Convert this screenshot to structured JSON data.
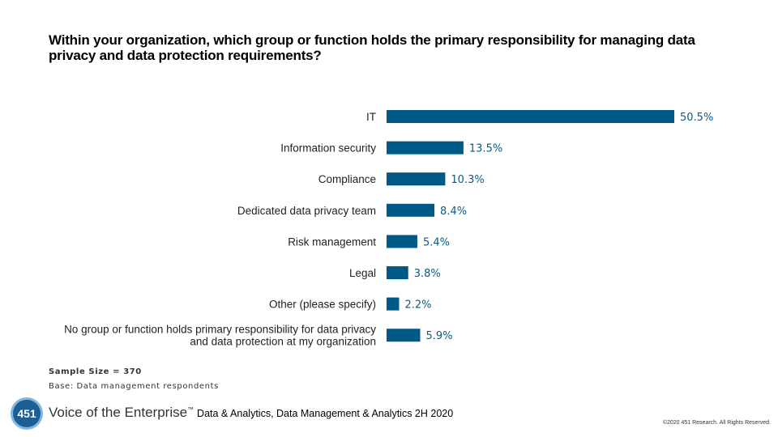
{
  "header": {
    "title": "Within your organization, which group or function holds the primary responsibility for managing data privacy and data protection requirements?"
  },
  "chart_data": {
    "type": "bar",
    "orientation": "horizontal",
    "categories": [
      [
        "IT"
      ],
      [
        "Information security"
      ],
      [
        "Compliance"
      ],
      [
        "Dedicated data privacy team"
      ],
      [
        "Risk management"
      ],
      [
        "Legal"
      ],
      [
        "Other (please specify)"
      ],
      [
        "No group or function holds primary responsibility for data privacy",
        "and data protection at my organization"
      ]
    ],
    "values": [
      50.5,
      13.5,
      10.3,
      8.4,
      5.4,
      3.8,
      2.2,
      5.9
    ],
    "value_labels": [
      "50.5%",
      "13.5%",
      "10.3%",
      "8.4%",
      "5.4%",
      "3.8%",
      "2.2%",
      "5.9%"
    ],
    "bar_color": "#005a87",
    "label_color": "#0b5a87",
    "xlim": [
      0,
      50.5
    ],
    "grid": false,
    "legend": "none"
  },
  "notes": {
    "sample_size": "Sample Size = 370",
    "base": "Base: Data management respondents"
  },
  "footer": {
    "logo_text": "451",
    "brand": "Voice of the Enterprise",
    "trademark": "™",
    "study": "Data & Analytics, Data Management  & Analytics 2H 2020",
    "copyright": "©2020 451 Research.  All Rights Reserved."
  }
}
